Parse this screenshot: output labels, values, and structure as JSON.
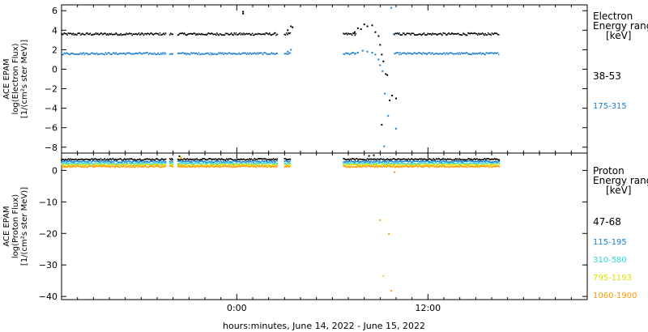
{
  "chart_data": {
    "type": "scatter",
    "xlabel": "hours:minutes, June 14, 2022 - June 15, 2022",
    "xlim": [
      -11,
      22
    ],
    "x_ticks": [
      {
        "value": 0,
        "label": "0:00"
      },
      {
        "value": 12,
        "label": "12:00"
      }
    ],
    "panels": [
      {
        "id": "electron",
        "ylabel_lines": [
          "ACE EPAM",
          "log(Electron Flux)",
          "[1/(cm²s ster MeV)]"
        ],
        "ylim": [
          -8.6,
          6.6
        ],
        "y_ticks": [
          6,
          4,
          2,
          0,
          -2,
          -4,
          -6,
          -8
        ],
        "legend_title": [
          "Electron",
          "Energy ranges",
          "[keV]"
        ],
        "series": [
          {
            "name": "38-53",
            "color": "#000000",
            "base": 3.6,
            "noise": 0.12,
            "segments": [
              [
                -11,
                -4.4
              ],
              [
                -4.2,
                -4.0
              ],
              [
                -3.7,
                2.6
              ],
              [
                3.0,
                3.4
              ],
              [
                6.7,
                7.5
              ],
              [
                9.9,
                16.5
              ]
            ],
            "extra": [
              [
                0.4,
                5.7
              ],
              [
                0.4,
                5.9
              ],
              [
                3.2,
                4.0
              ],
              [
                3.4,
                4.4
              ],
              [
                3.5,
                4.3
              ],
              [
                7.4,
                3.8
              ],
              [
                7.6,
                4.2
              ],
              [
                7.8,
                4.1
              ],
              [
                8.0,
                4.6
              ],
              [
                8.2,
                4.4
              ],
              [
                8.5,
                4.5
              ],
              [
                8.7,
                3.8
              ],
              [
                8.9,
                3.4
              ],
              [
                9.0,
                2.5
              ],
              [
                9.1,
                1.5
              ],
              [
                9.2,
                0.8
              ],
              [
                9.35,
                -0.5
              ],
              [
                9.45,
                -0.6
              ],
              [
                9.6,
                -3.2
              ],
              [
                9.75,
                -2.7
              ],
              [
                10.0,
                -3.0
              ],
              [
                9.1,
                -5.7
              ]
            ]
          },
          {
            "name": "175-315",
            "color": "#1a7fd0",
            "base": 1.6,
            "noise": 0.1,
            "segments": [
              [
                -11,
                -4.4
              ],
              [
                -4.2,
                -4.0
              ],
              [
                -3.7,
                2.6
              ],
              [
                3.0,
                3.4
              ],
              [
                6.7,
                7.5
              ],
              [
                9.9,
                16.5
              ]
            ],
            "extra": [
              [
                3.2,
                1.8
              ],
              [
                3.4,
                2.0
              ],
              [
                7.6,
                1.7
              ],
              [
                7.9,
                1.9
              ],
              [
                8.2,
                1.8
              ],
              [
                8.5,
                1.7
              ],
              [
                8.7,
                1.5
              ],
              [
                8.9,
                1.0
              ],
              [
                9.0,
                0.4
              ],
              [
                9.15,
                -0.2
              ],
              [
                9.3,
                -2.5
              ],
              [
                9.25,
                -7.9
              ],
              [
                9.7,
                6.3
              ],
              [
                9.85,
                3.6
              ],
              [
                10.0,
                -6.1
              ],
              [
                9.5,
                -4.8
              ]
            ]
          }
        ]
      },
      {
        "id": "proton",
        "ylabel_lines": [
          "ACE EPAM",
          "log(Proton Flux)",
          "[1/(cm²s ster MeV)]"
        ],
        "ylim": [
          -41,
          5.5
        ],
        "y_ticks": [
          0,
          -10,
          -20,
          -30,
          -40
        ],
        "legend_title": [
          "Proton",
          "Energy ranges",
          "[keV]"
        ],
        "series": [
          {
            "name": "47-68",
            "color": "#000000",
            "base": 3.5,
            "noise": 0.25,
            "segments": [
              [
                -11,
                -4.4
              ],
              [
                -4.2,
                -4.0
              ],
              [
                -3.7,
                2.6
              ],
              [
                3.0,
                3.4
              ],
              [
                6.7,
                16.5
              ]
            ],
            "extra": [
              [
                8.3,
                4.6
              ],
              [
                8.6,
                4.8
              ],
              [
                -3.6,
                4.5
              ]
            ]
          },
          {
            "name": "115-195",
            "color": "#1a7fd0",
            "base": 2.8,
            "noise": 0.25,
            "segments": [
              [
                -11,
                -4.4
              ],
              [
                -4.2,
                -4.0
              ],
              [
                -3.7,
                2.6
              ],
              [
                3.0,
                3.4
              ],
              [
                6.7,
                16.5
              ]
            ],
            "extra": [
              [
                8.6,
                2.0
              ],
              [
                9.0,
                1.5
              ]
            ]
          },
          {
            "name": "310-580",
            "color": "#30d5d5",
            "base": 2.2,
            "noise": 0.25,
            "segments": [
              [
                -11,
                -4.4
              ],
              [
                -4.2,
                -4.0
              ],
              [
                -3.7,
                2.6
              ],
              [
                3.0,
                3.4
              ],
              [
                6.7,
                16.5
              ]
            ],
            "extra": [
              [
                8.8,
                1.2
              ]
            ]
          },
          {
            "name": "795-1193",
            "color": "#e0e000",
            "base": 1.7,
            "noise": 0.25,
            "segments": [
              [
                -11,
                -4.4
              ],
              [
                -4.2,
                -4.0
              ],
              [
                -3.7,
                2.6
              ],
              [
                3.0,
                3.4
              ],
              [
                6.7,
                16.5
              ]
            ],
            "extra": [
              [
                9.2,
                -33.5
              ],
              [
                -3.5,
                4.2
              ]
            ]
          },
          {
            "name": "1060-1900",
            "color": "#ff9900",
            "base": 1.2,
            "noise": 0.25,
            "segments": [
              [
                -11,
                -4.4
              ],
              [
                -4.2,
                -4.0
              ],
              [
                -3.7,
                2.6
              ],
              [
                3.0,
                3.4
              ],
              [
                6.7,
                16.5
              ]
            ],
            "extra": [
              [
                9.0,
                -15.8
              ],
              [
                9.55,
                -20.2
              ],
              [
                9.7,
                -38.2
              ],
              [
                9.9,
                -0.6
              ],
              [
                -3.5,
                3.8
              ]
            ]
          }
        ]
      }
    ]
  }
}
